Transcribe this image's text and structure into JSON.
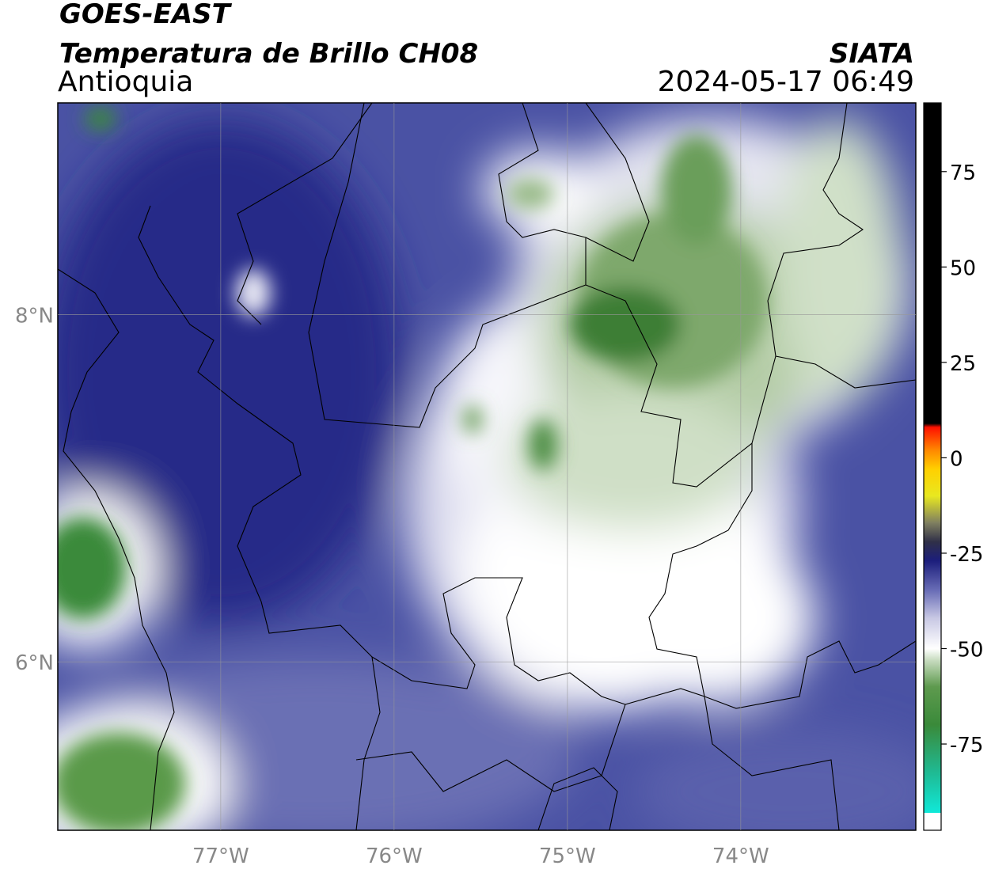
{
  "header": {
    "title": "GOES-EAST",
    "subtitle": "Temperatura de Brillo CH08",
    "region": "Antioquia",
    "source": "SIATA",
    "datetime": "2024-05-17 06:49"
  },
  "map": {
    "xlim": [
      -77.94,
      -72.99
    ],
    "ylim": [
      5.03,
      9.22
    ],
    "xticks": [
      {
        "value": -77,
        "label": "77°W"
      },
      {
        "value": -76,
        "label": "76°W"
      },
      {
        "value": -75,
        "label": "75°W"
      },
      {
        "value": -74,
        "label": "74°W"
      }
    ],
    "yticks": [
      {
        "value": 8,
        "label": "8°N"
      },
      {
        "value": 6,
        "label": "6°N"
      }
    ],
    "grid": true
  },
  "colorbar": {
    "clim": [
      -97.6,
      93
    ],
    "ticks": [
      75,
      50,
      25,
      0,
      -25,
      -50,
      -75
    ],
    "stops": [
      [
        -97.6,
        "#ffffff"
      ],
      [
        -93,
        "#ffffff"
      ],
      [
        -93,
        "#10e8d8"
      ],
      [
        -82,
        "#20b890"
      ],
      [
        -70,
        "#3a8a3a"
      ],
      [
        -60,
        "#5e9a4e"
      ],
      [
        -53,
        "#c8dcc0"
      ],
      [
        -50,
        "#ffffff"
      ],
      [
        -42,
        "#c8c8e4"
      ],
      [
        -35,
        "#6c70b8"
      ],
      [
        -27,
        "#1c1e7c"
      ],
      [
        -22,
        "#303048"
      ],
      [
        -17,
        "#808060"
      ],
      [
        -10,
        "#e8e820"
      ],
      [
        -3,
        "#ffd000"
      ],
      [
        2,
        "#ff8800"
      ],
      [
        8,
        "#ff1000"
      ],
      [
        9,
        "#000000"
      ],
      [
        93,
        "#000000"
      ]
    ]
  }
}
